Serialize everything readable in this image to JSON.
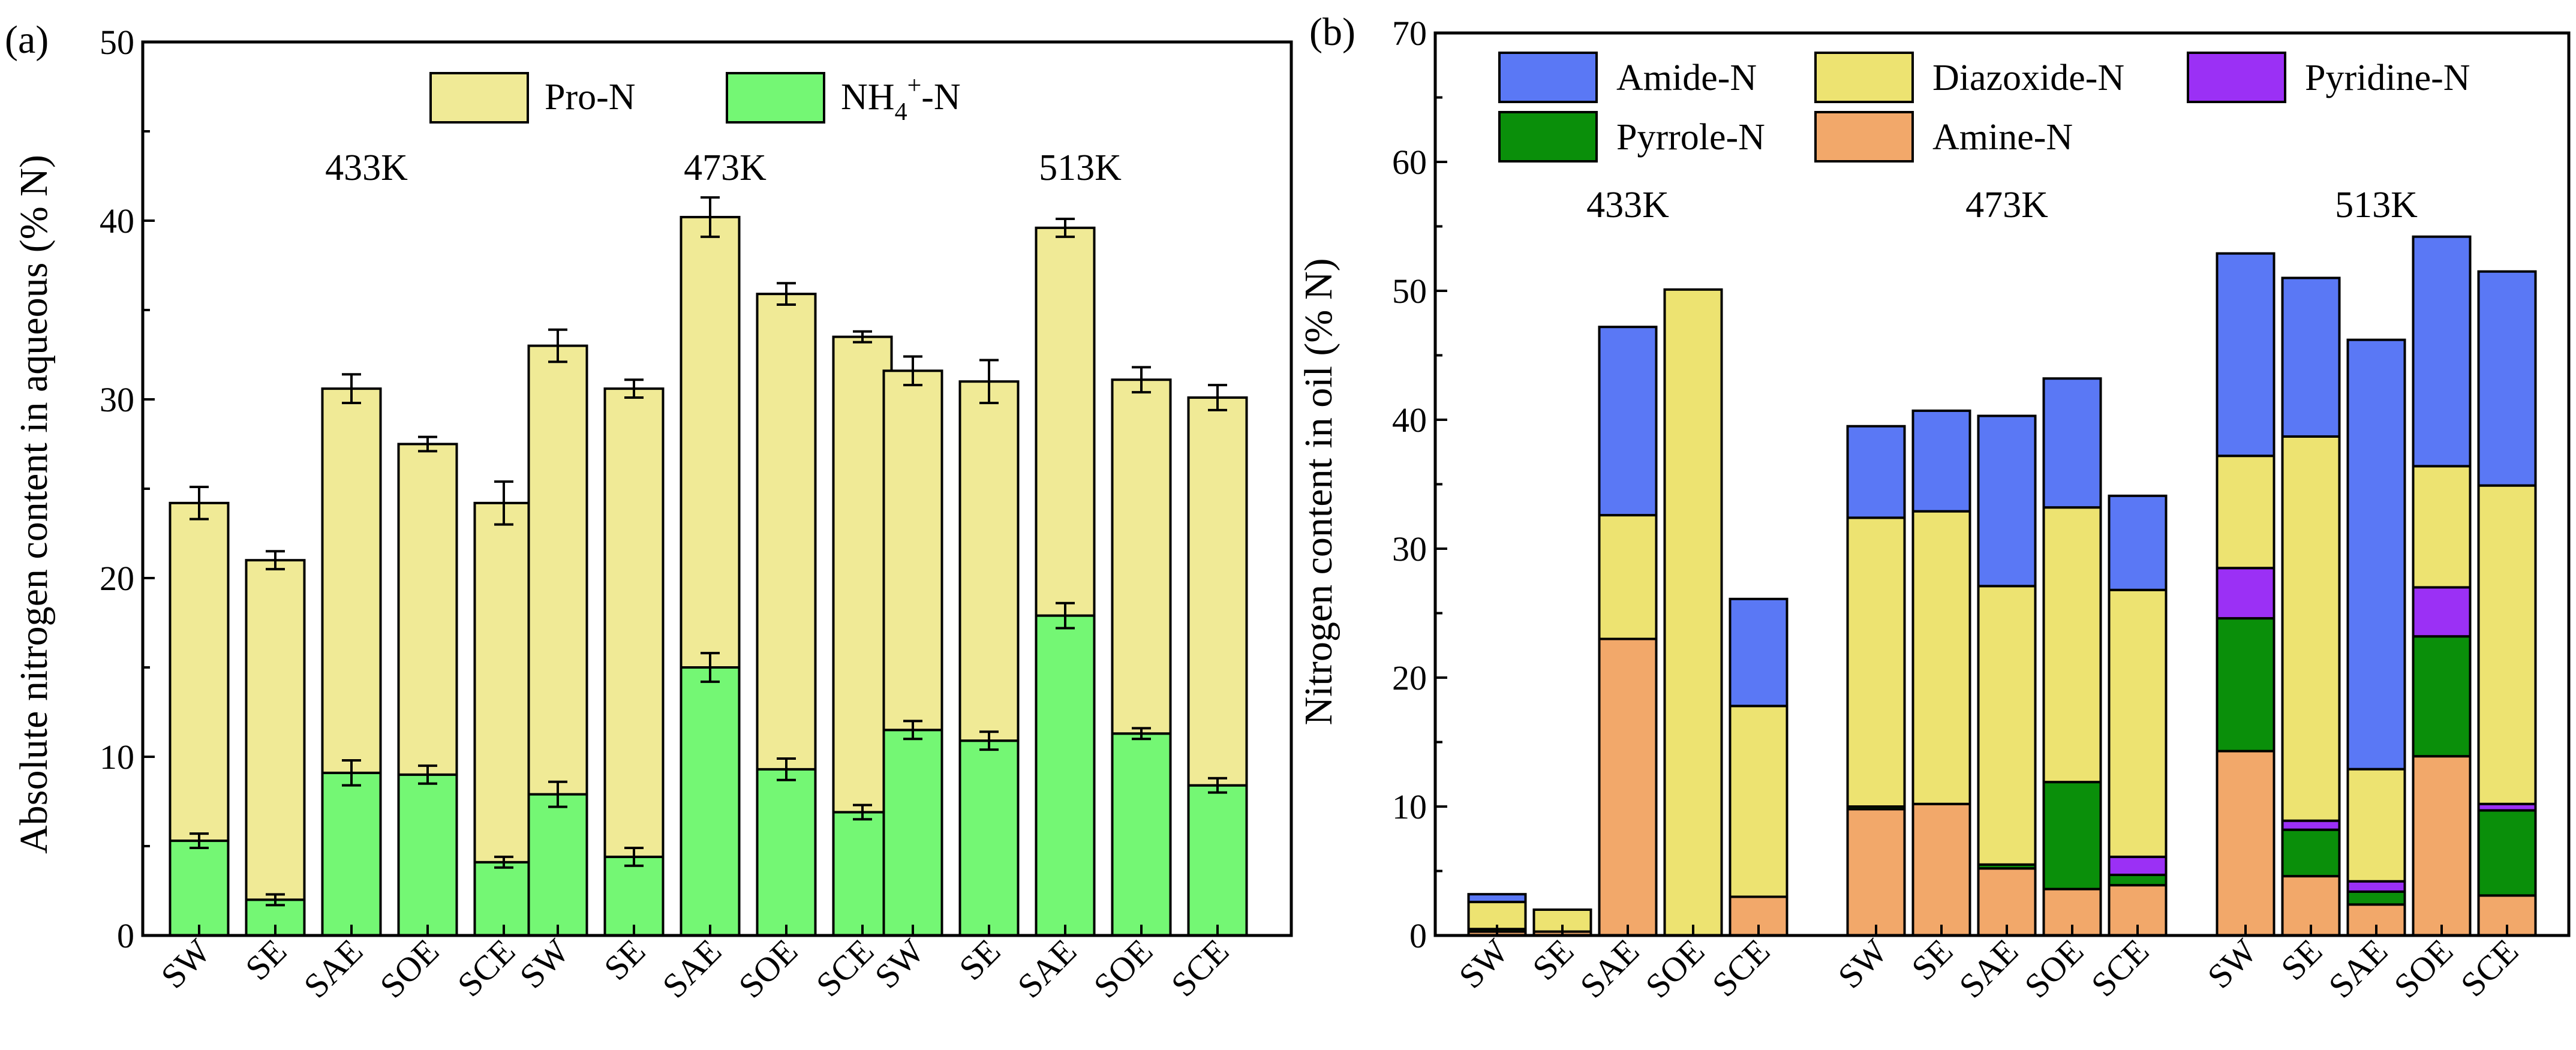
{
  "chart_data": [
    {
      "panel": "(a)",
      "type": "bar",
      "stacked": true,
      "ylabel": "Absolute nitrogen content in aqueous (% N)",
      "ylim": [
        0,
        50
      ],
      "yticks": [
        0,
        10,
        20,
        30,
        40,
        50
      ],
      "categories": [
        "SW",
        "SE",
        "SAE",
        "SOE",
        "SCE"
      ],
      "groups": [
        "433K",
        "473K",
        "513K"
      ],
      "legend_position": "top-center",
      "series": [
        {
          "name": "NH4+-N",
          "legend_label": {
            "base": "NH",
            "sub": "4",
            "sup": "+",
            "tail": "-N"
          },
          "color": "#74f774",
          "values": [
            [
              5.3,
              2.0,
              9.1,
              9.0,
              4.1
            ],
            [
              7.9,
              4.4,
              15.0,
              9.3,
              6.9
            ],
            [
              11.5,
              10.9,
              17.9,
              11.3,
              8.4
            ]
          ],
          "errors": [
            [
              0.4,
              0.3,
              0.7,
              0.5,
              0.3
            ],
            [
              0.7,
              0.5,
              0.8,
              0.6,
              0.4
            ],
            [
              0.5,
              0.5,
              0.7,
              0.3,
              0.4
            ]
          ]
        },
        {
          "name": "Pro-N",
          "legend_label": {
            "base": "Pro-N"
          },
          "color": "#f0ea96",
          "totals": [
            [
              24.2,
              21.0,
              30.6,
              27.5,
              24.2
            ],
            [
              33.0,
              30.6,
              40.2,
              35.9,
              33.5
            ],
            [
              31.6,
              31.0,
              39.6,
              31.1,
              30.1
            ]
          ],
          "errors": [
            [
              0.9,
              0.5,
              0.8,
              0.4,
              1.2
            ],
            [
              0.9,
              0.5,
              1.1,
              0.6,
              0.3
            ],
            [
              0.8,
              1.2,
              0.5,
              0.7,
              0.7
            ]
          ]
        }
      ]
    },
    {
      "panel": "(b)",
      "type": "bar",
      "stacked": true,
      "ylabel": "Nitrogen content in oil (% N)",
      "ylim": [
        0,
        70
      ],
      "yticks": [
        0,
        10,
        20,
        30,
        40,
        50,
        60,
        70
      ],
      "categories": [
        "SW",
        "SE",
        "SAE",
        "SOE",
        "SCE"
      ],
      "groups": [
        "433K",
        "473K",
        "513K"
      ],
      "legend_position": "top-left",
      "legend_order": [
        "Amide-N",
        "Diazoxide-N",
        "Pyridine-N",
        "Pyrrole-N",
        "Amine-N"
      ],
      "series": [
        {
          "name": "Amine-N",
          "color": "#f2a86a",
          "values": [
            [
              0.3,
              0.3,
              23.0,
              0.0,
              3.0
            ],
            [
              9.8,
              10.2,
              5.2,
              3.6,
              3.9
            ],
            [
              14.3,
              4.6,
              2.4,
              13.9,
              3.1
            ]
          ]
        },
        {
          "name": "Pyrrole-N",
          "color": "#0a8f0a",
          "values": [
            [
              0.2,
              0.0,
              0.0,
              0.0,
              0.0
            ],
            [
              0.2,
              0.0,
              0.3,
              8.3,
              0.8
            ],
            [
              10.3,
              3.6,
              1.0,
              9.3,
              6.6
            ]
          ]
        },
        {
          "name": "Pyridine-N",
          "color": "#9b30f5",
          "values": [
            [
              0.0,
              0.0,
              0.0,
              0.0,
              0.0
            ],
            [
              0.0,
              0.0,
              0.0,
              0.0,
              1.4
            ],
            [
              3.9,
              0.7,
              0.8,
              3.8,
              0.5
            ]
          ]
        },
        {
          "name": "Diazoxide-N",
          "color": "#ede371",
          "values": [
            [
              2.1,
              1.7,
              9.6,
              50.1,
              14.8
            ],
            [
              22.4,
              22.7,
              21.6,
              21.3,
              20.7
            ],
            [
              8.7,
              29.8,
              8.7,
              9.4,
              24.7
            ]
          ]
        },
        {
          "name": "Amide-N",
          "color": "#5a78f5",
          "values": [
            [
              0.6,
              0.0,
              14.6,
              0.0,
              8.3
            ],
            [
              7.1,
              7.8,
              13.2,
              10.0,
              7.3
            ],
            [
              15.7,
              12.3,
              33.3,
              17.8,
              16.6
            ]
          ]
        }
      ]
    }
  ]
}
